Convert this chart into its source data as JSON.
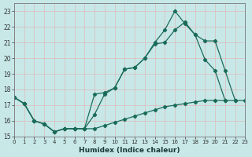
{
  "xlabel": "Humidex (Indice chaleur)",
  "bg_color": "#c8e8e8",
  "grid_color": "#e0b8b8",
  "line_color": "#1a6b5a",
  "xlim": [
    0,
    23
  ],
  "ylim": [
    15,
    23.5
  ],
  "yticks": [
    15,
    16,
    17,
    18,
    19,
    20,
    21,
    22,
    23
  ],
  "xticks": [
    0,
    1,
    2,
    3,
    4,
    5,
    6,
    7,
    8,
    9,
    10,
    11,
    12,
    13,
    14,
    15,
    16,
    17,
    18,
    19,
    20,
    21,
    22,
    23
  ],
  "series1_x": [
    0,
    1,
    2,
    3,
    4,
    5,
    6,
    7,
    8,
    9,
    10,
    11,
    12,
    13,
    14,
    15,
    16,
    17,
    18,
    19,
    20,
    21,
    22,
    23
  ],
  "series1_y": [
    17.5,
    17.1,
    16.0,
    15.8,
    15.3,
    15.5,
    15.5,
    15.5,
    17.7,
    17.8,
    18.1,
    19.3,
    19.4,
    20.0,
    21.0,
    21.8,
    23.0,
    22.2,
    21.5,
    19.9,
    19.2,
    17.3,
    null,
    null
  ],
  "series2_x": [
    0,
    1,
    2,
    3,
    4,
    5,
    6,
    7,
    8,
    9,
    10,
    11,
    12,
    13,
    14,
    15,
    16,
    17,
    18,
    19,
    20,
    21,
    22,
    23
  ],
  "series2_y": [
    17.5,
    17.1,
    16.0,
    15.8,
    15.3,
    15.5,
    15.5,
    15.5,
    16.4,
    17.7,
    18.1,
    19.3,
    19.4,
    20.0,
    20.9,
    21.0,
    21.8,
    22.3,
    21.5,
    21.1,
    21.1,
    19.2,
    17.3,
    null
  ],
  "series3_x": [
    0,
    1,
    2,
    3,
    4,
    5,
    6,
    7,
    8,
    9,
    10,
    11,
    12,
    13,
    14,
    15,
    16,
    17,
    18,
    19,
    20,
    21,
    22,
    23
  ],
  "series3_y": [
    17.5,
    17.1,
    16.0,
    15.8,
    15.3,
    15.5,
    15.5,
    15.5,
    15.5,
    15.7,
    15.9,
    16.1,
    16.3,
    16.5,
    16.7,
    16.9,
    17.0,
    17.1,
    17.2,
    17.3,
    17.3,
    17.3,
    17.3,
    17.3
  ]
}
